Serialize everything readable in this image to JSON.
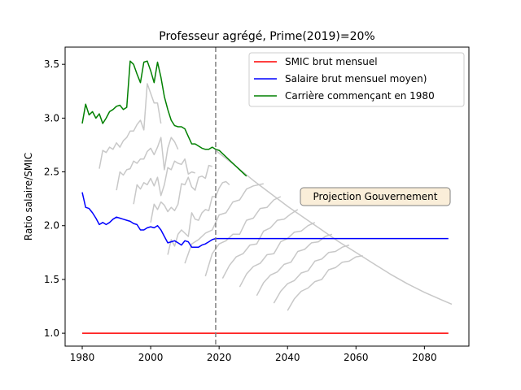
{
  "chart_data": {
    "type": "line",
    "title": "Professeur agrégé, Prime(2019)=20%",
    "xlabel": "",
    "ylabel": "Ratio salaire/SMIC",
    "xlim": [
      1975,
      2093
    ],
    "ylim": [
      0.88,
      3.66
    ],
    "xticks": [
      1980,
      2000,
      2020,
      2040,
      2060,
      2080
    ],
    "yticks": [
      1.0,
      1.5,
      2.0,
      2.5,
      3.0,
      3.5
    ],
    "xtick_labels": [
      "1980",
      "2000",
      "2020",
      "2040",
      "2060",
      "2080"
    ],
    "ytick_labels": [
      "1.0",
      "1.5",
      "2.0",
      "2.5",
      "3.0",
      "3.5"
    ],
    "vline": {
      "x": 2019,
      "style": "dashed",
      "color": "#808080"
    },
    "legend_position": "top-right",
    "annotation": {
      "text": "Projection Gouvernement",
      "x": 2054,
      "y": 2.26
    },
    "series": [
      {
        "name": "SMIC brut mensuel",
        "color": "#ff0000",
        "x": [
          1980,
          2087
        ],
        "y": [
          1.0,
          1.0
        ]
      },
      {
        "name": "Salaire brut mensuel moyen)",
        "color": "#0000ff",
        "x": [
          1980,
          1981,
          1982,
          1983,
          1984,
          1985,
          1986,
          1987,
          1988,
          1989,
          1990,
          1991,
          1992,
          1993,
          1994,
          1995,
          1996,
          1997,
          1998,
          1999,
          2000,
          2001,
          2002,
          2003,
          2004,
          2005,
          2006,
          2007,
          2008,
          2009,
          2010,
          2011,
          2012,
          2013,
          2014,
          2015,
          2016,
          2017,
          2018,
          2019,
          2020,
          2087
        ],
        "y": [
          2.31,
          2.17,
          2.16,
          2.12,
          2.07,
          2.01,
          2.03,
          2.01,
          2.03,
          2.06,
          2.08,
          2.07,
          2.06,
          2.05,
          2.04,
          2.02,
          2.01,
          1.96,
          1.96,
          1.98,
          1.99,
          1.98,
          2.0,
          1.96,
          1.9,
          1.84,
          1.85,
          1.86,
          1.84,
          1.82,
          1.86,
          1.85,
          1.8,
          1.8,
          1.8,
          1.82,
          1.83,
          1.85,
          1.87,
          1.88,
          1.88,
          1.88
        ]
      },
      {
        "name": "Carrière commençant en 1980",
        "color": "#008000",
        "x": [
          1980,
          1981,
          1982,
          1983,
          1984,
          1985,
          1986,
          1987,
          1988,
          1989,
          1990,
          1991,
          1992,
          1993,
          1994,
          1995,
          1996,
          1997,
          1998,
          1999,
          2000,
          2001,
          2002,
          2003,
          2004,
          2005,
          2006,
          2007,
          2008,
          2009,
          2010,
          2011,
          2012,
          2013,
          2014,
          2015,
          2016,
          2017,
          2018,
          2019,
          2020,
          2022,
          2024,
          2026,
          2028
        ],
        "y": [
          2.95,
          3.13,
          3.03,
          3.06,
          3.0,
          3.04,
          2.95,
          3.0,
          3.06,
          3.08,
          3.11,
          3.12,
          3.08,
          3.1,
          3.53,
          3.5,
          3.41,
          3.33,
          3.52,
          3.53,
          3.44,
          3.33,
          3.52,
          3.38,
          3.2,
          3.08,
          2.98,
          2.93,
          2.92,
          2.92,
          2.9,
          2.83,
          2.76,
          2.76,
          2.74,
          2.72,
          2.71,
          2.71,
          2.73,
          2.71,
          2.7,
          2.64,
          2.58,
          2.52,
          2.46
        ]
      }
    ],
    "gray_curves": [
      {
        "x": [
          1985,
          1986,
          1987,
          1988,
          1989,
          1990,
          1991,
          1992,
          1993,
          1994,
          1995,
          1996,
          1997,
          1998,
          1999,
          2000,
          2001,
          2002,
          2003
        ],
        "y": [
          2.53,
          2.7,
          2.68,
          2.73,
          2.71,
          2.77,
          2.73,
          2.79,
          2.82,
          2.88,
          2.88,
          2.94,
          2.98,
          2.89,
          3.32,
          3.23,
          3.14,
          3.14,
          2.95
        ]
      },
      {
        "x": [
          1990,
          1991,
          1992,
          1993,
          1994,
          1995,
          1996,
          1997,
          1998,
          1999,
          2000,
          2001,
          2002,
          2003,
          2004,
          2005,
          2006,
          2007,
          2008
        ],
        "y": [
          2.33,
          2.5,
          2.47,
          2.52,
          2.53,
          2.6,
          2.58,
          2.62,
          2.62,
          2.69,
          2.72,
          2.66,
          2.73,
          2.82,
          2.52,
          2.72,
          2.82,
          2.78,
          2.71
        ]
      },
      {
        "x": [
          1995,
          1996,
          1997,
          1998,
          1999,
          2000,
          2001,
          2002,
          2003,
          2004,
          2005,
          2006,
          2007,
          2008,
          2009,
          2010,
          2011,
          2012,
          2013
        ],
        "y": [
          2.2,
          2.38,
          2.34,
          2.4,
          2.38,
          2.44,
          2.37,
          2.45,
          2.28,
          2.38,
          2.54,
          2.52,
          2.6,
          2.58,
          2.57,
          2.62,
          2.48,
          2.5,
          2.49
        ]
      },
      {
        "x": [
          2000,
          2001,
          2002,
          2003,
          2004,
          2005,
          2006,
          2007,
          2008,
          2009,
          2010,
          2011,
          2012,
          2013,
          2014,
          2015,
          2016,
          2017,
          2018
        ],
        "y": [
          2.03,
          2.2,
          2.15,
          2.22,
          2.19,
          2.13,
          2.17,
          2.14,
          2.2,
          2.39,
          2.38,
          2.45,
          2.36,
          2.33,
          2.45,
          2.46,
          2.44,
          2.56,
          2.55
        ]
      },
      {
        "x": [
          2005,
          2006,
          2007,
          2008,
          2009,
          2010,
          2011,
          2012,
          2013,
          2014,
          2015,
          2016,
          2017,
          2018,
          2019,
          2020,
          2021,
          2022,
          2023
        ],
        "y": [
          1.73,
          1.87,
          1.81,
          1.92,
          1.96,
          1.93,
          1.9,
          2.12,
          2.06,
          2.05,
          2.12,
          2.15,
          2.14,
          2.27,
          2.27,
          2.35,
          2.4,
          2.41,
          2.38
        ]
      },
      {
        "x": [
          2010,
          2012,
          2014,
          2016,
          2018,
          2020,
          2022,
          2024,
          2026,
          2028,
          2030,
          2033
        ],
        "y": [
          1.65,
          1.83,
          1.87,
          1.93,
          1.96,
          2.1,
          2.12,
          2.22,
          2.24,
          2.34,
          2.37,
          2.39
        ]
      },
      {
        "x": [
          2016,
          2018,
          2020,
          2022,
          2024,
          2026,
          2028,
          2030,
          2032,
          2034,
          2036,
          2038
        ],
        "y": [
          1.53,
          1.74,
          1.83,
          1.86,
          1.92,
          1.92,
          2.05,
          2.07,
          2.16,
          2.17,
          2.24,
          2.27
        ]
      },
      {
        "x": [
          2021,
          2023,
          2025,
          2027,
          2029,
          2031,
          2033,
          2035,
          2037,
          2039,
          2041,
          2043
        ],
        "y": [
          1.51,
          1.63,
          1.71,
          1.74,
          1.82,
          1.83,
          1.95,
          1.98,
          2.05,
          2.06,
          2.11,
          2.15
        ]
      },
      {
        "x": [
          2026,
          2028,
          2030,
          2032,
          2034,
          2036,
          2038,
          2040,
          2042,
          2044,
          2046,
          2048
        ],
        "y": [
          1.43,
          1.55,
          1.62,
          1.65,
          1.73,
          1.74,
          1.85,
          1.88,
          1.94,
          1.95,
          2.0,
          2.03
        ]
      },
      {
        "x": [
          2031,
          2033,
          2035,
          2037,
          2039,
          2041,
          2043,
          2045,
          2047,
          2049,
          2051,
          2053
        ],
        "y": [
          1.35,
          1.47,
          1.54,
          1.57,
          1.64,
          1.66,
          1.76,
          1.78,
          1.84,
          1.85,
          1.9,
          1.92
        ]
      },
      {
        "x": [
          2036,
          2038,
          2040,
          2042,
          2044,
          2046,
          2048,
          2050,
          2052,
          2054,
          2056,
          2058
        ],
        "y": [
          1.28,
          1.39,
          1.46,
          1.49,
          1.56,
          1.58,
          1.67,
          1.69,
          1.75,
          1.76,
          1.8,
          1.82
        ]
      },
      {
        "x": [
          2040,
          2042,
          2044,
          2046,
          2048,
          2050,
          2052,
          2054,
          2056,
          2058,
          2060,
          2062
        ],
        "y": [
          1.21,
          1.32,
          1.39,
          1.42,
          1.48,
          1.5,
          1.59,
          1.61,
          1.66,
          1.67,
          1.71,
          1.72
        ]
      },
      {
        "x": [
          2019,
          2025,
          2030,
          2035,
          2040,
          2045,
          2050,
          2055,
          2060,
          2065,
          2070,
          2075,
          2080,
          2085,
          2088
        ],
        "y": [
          2.7,
          2.55,
          2.42,
          2.3,
          2.18,
          2.07,
          1.96,
          1.85,
          1.75,
          1.65,
          1.55,
          1.46,
          1.38,
          1.31,
          1.27
        ]
      }
    ],
    "gray_color": "#c8c8c8"
  }
}
